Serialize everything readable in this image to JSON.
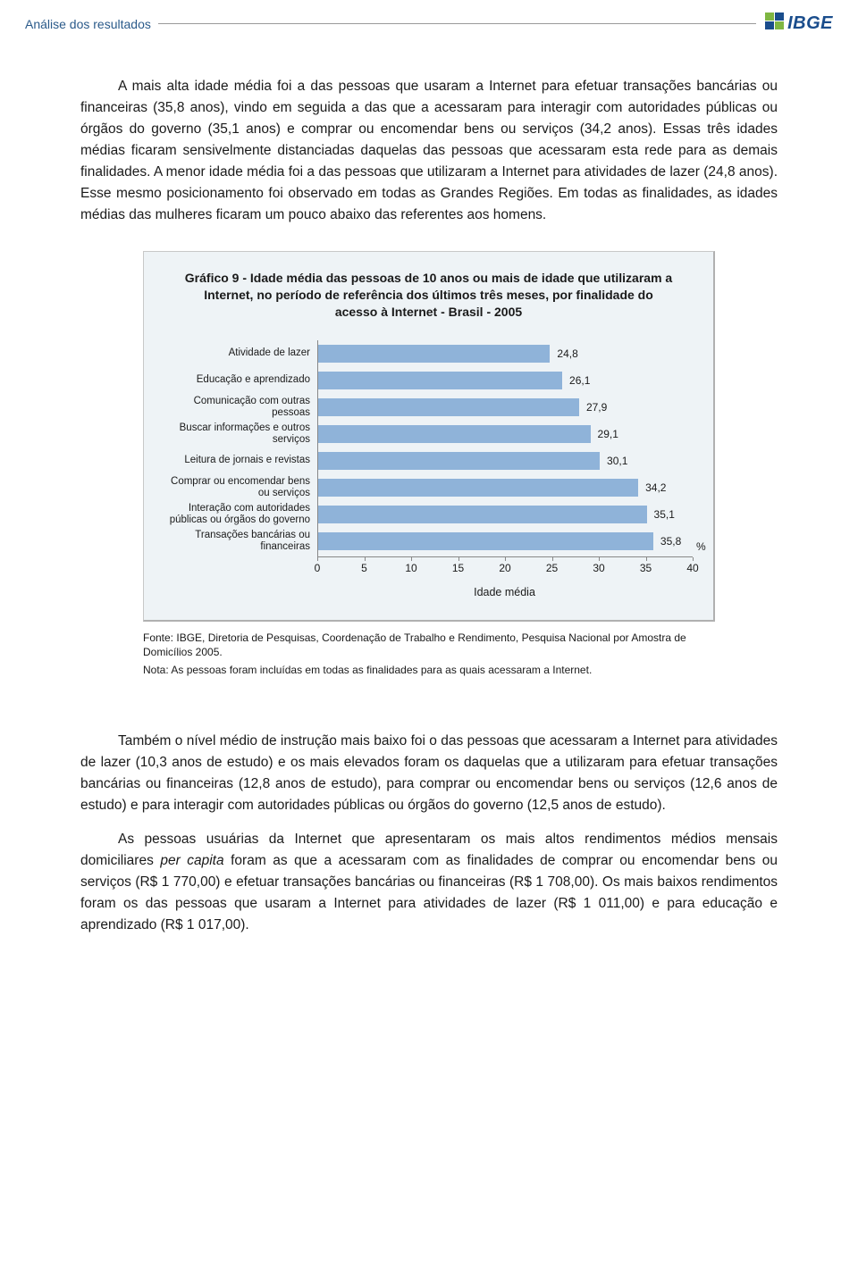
{
  "header": {
    "section_title": "Análise dos resultados",
    "logo_text": "IBGE",
    "logo_primary": "#1a4d8c",
    "logo_accent": "#7fb642"
  },
  "paragraphs": {
    "p1": "A mais alta idade média foi a das pessoas que usaram a Internet para efetuar transações bancárias ou financeiras (35,8 anos), vindo em seguida a das que a acessaram para interagir com autoridades públicas ou órgãos do governo (35,1 anos) e comprar ou encomendar bens ou serviços (34,2 anos). Essas três idades médias ficaram sensivelmente distanciadas daquelas das pessoas que acessaram esta rede para as demais finalidades. A menor idade média foi a das pessoas que utilizaram a Internet para atividades de lazer (24,8 anos). Esse mesmo posicionamento foi observado em todas as Grandes Regiões. Em todas as finalidades, as idades médias das mulheres ficaram um pouco abaixo das referentes aos homens.",
    "p2_a": "Também o nível médio de instrução mais baixo foi o das pessoas que acessaram a Internet para atividades de lazer (10,3 anos de estudo) e os mais elevados foram os daquelas que a utilizaram para efetuar transações bancárias ou financeiras (12,8 anos de estudo), para comprar ou encomendar bens ou serviços (12,6 anos de estudo) e para interagir com autoridades públicas ou órgãos do governo (12,5 anos de estudo).",
    "p3_a": "As pessoas usuárias da Internet que apresentaram os mais altos rendimentos médios mensais domiciliares ",
    "p3_em": "per capita",
    "p3_b": " foram as que a acessaram com as finalidades de comprar ou encomendar bens ou serviços (R$ 1 770,00) e efetuar transações bancárias ou financeiras (R$ 1 708,00). Os mais baixos rendimentos foram os das pessoas que usaram a Internet para atividades de lazer (R$ 1 011,00) e para educação e aprendizado (R$ 1 017,00)."
  },
  "chart": {
    "title": "Gráfico 9 - Idade média das pessoas de 10 anos ou mais de idade que utilizaram a Internet, no período de referência dos últimos três meses, por finalidade do acesso à Internet - Brasil - 2005",
    "bar_color": "#8fb3d9",
    "background_color": "#eef3f6",
    "xmax": 40,
    "unit_label": "%",
    "x_title": "Idade média",
    "x_ticks": [
      "0",
      "5",
      "10",
      "15",
      "20",
      "25",
      "30",
      "35",
      "40"
    ],
    "rows": [
      {
        "label": "Atividade de lazer",
        "value": 24.8,
        "display": "24,8"
      },
      {
        "label": "Educação e aprendizado",
        "value": 26.1,
        "display": "26,1"
      },
      {
        "label": "Comunicação com outras pessoas",
        "value": 27.9,
        "display": "27,9"
      },
      {
        "label": "Buscar informações e outros serviços",
        "value": 29.1,
        "display": "29,1"
      },
      {
        "label": "Leitura de jornais e revistas",
        "value": 30.1,
        "display": "30,1"
      },
      {
        "label": "Comprar ou encomendar bens ou serviços",
        "value": 34.2,
        "display": "34,2"
      },
      {
        "label": "Interação com autoridades públicas ou órgãos do governo",
        "value": 35.1,
        "display": "35,1"
      },
      {
        "label": "Transações bancárias ou financeiras",
        "value": 35.8,
        "display": "35,8"
      }
    ],
    "source": "Fonte: IBGE, Diretoria de Pesquisas, Coordenação de Trabalho e Rendimento,  Pesquisa Nacional por Amostra de Domicílios 2005.",
    "note": "Nota: As pessoas foram incluídas em todas as finalidades para as quais acessaram a Internet."
  }
}
